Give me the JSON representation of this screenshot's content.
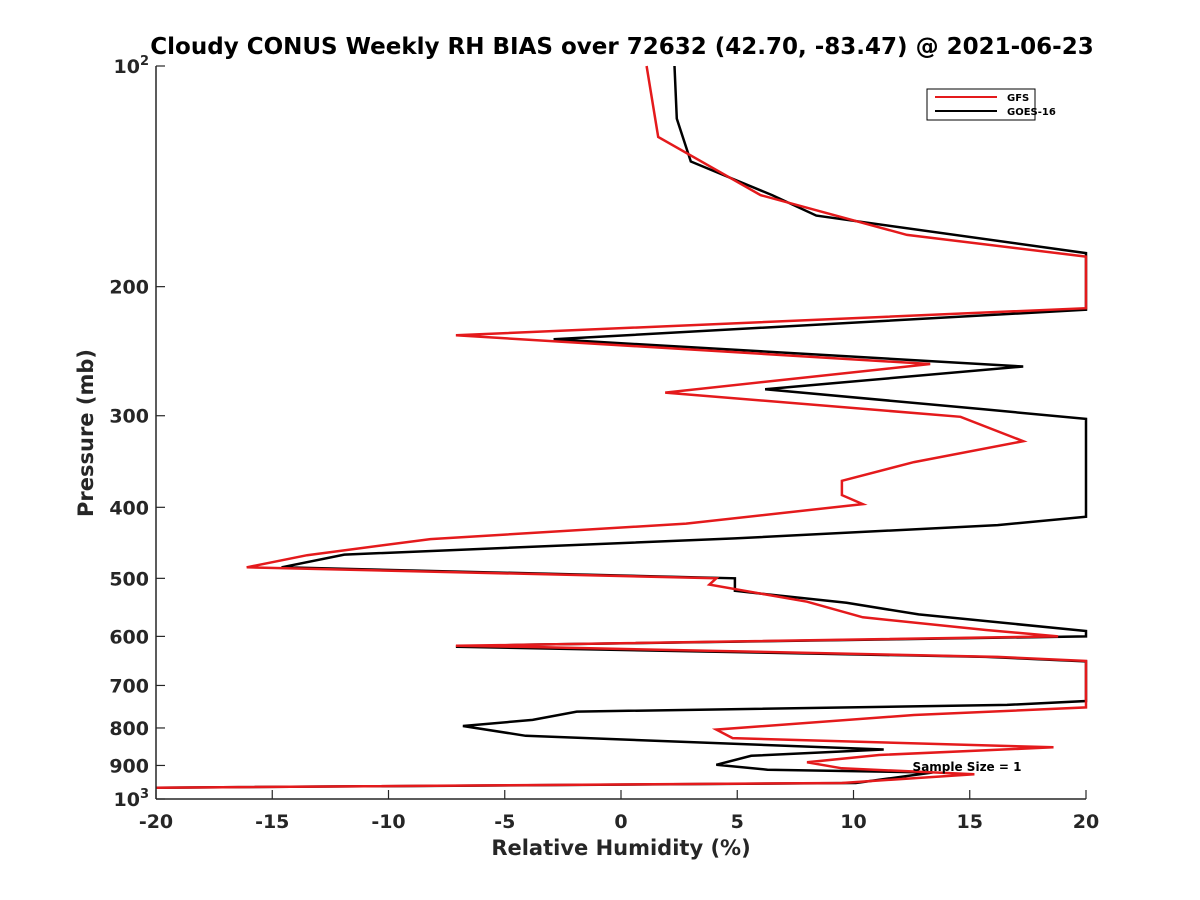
{
  "chart_data": {
    "type": "line",
    "title": "Cloudy CONUS Weekly RH BIAS over 72632 (42.70, -83.47) @ 2021-06-23",
    "xlabel": "Relative Humidity (%)",
    "ylabel": "Pressure (mb)",
    "xlim": [
      -20,
      20
    ],
    "ylim": [
      1000,
      100
    ],
    "yscale": "log",
    "y_reversed": true,
    "grid": false,
    "legend_position": "top-right",
    "x_ticks": [
      -20,
      -15,
      -10,
      -5,
      0,
      5,
      10,
      15,
      20
    ],
    "x_tick_labels": [
      "-20",
      "-15",
      "-10",
      "-5",
      "0",
      "5",
      "10",
      "15",
      "20"
    ],
    "y_ticks": [
      {
        "value": 100,
        "base": "10",
        "exp": "2"
      },
      {
        "value": 200,
        "label": "200"
      },
      {
        "value": 300,
        "label": "300"
      },
      {
        "value": 400,
        "label": "400"
      },
      {
        "value": 500,
        "label": "500"
      },
      {
        "value": 600,
        "label": "600"
      },
      {
        "value": 700,
        "label": "700"
      },
      {
        "value": 800,
        "label": "800"
      },
      {
        "value": 900,
        "label": "900"
      },
      {
        "value": 1000,
        "base": "10",
        "exp": "3"
      }
    ],
    "annotation": "Sample Size = 1",
    "series": [
      {
        "name": "GFS",
        "color": "#e41a1c",
        "points": [
          [
            1.1,
            100
          ],
          [
            1.6,
            125
          ],
          [
            6.0,
            150
          ],
          [
            12.3,
            170
          ],
          [
            20.0,
            182
          ],
          [
            20.0,
            214
          ],
          [
            -7.1,
            233
          ],
          [
            13.3,
            255
          ],
          [
            1.9,
            279
          ],
          [
            14.6,
            301
          ],
          [
            17.3,
            325
          ],
          [
            12.6,
            347
          ],
          [
            9.5,
            368
          ],
          [
            9.5,
            385
          ],
          [
            10.4,
            396
          ],
          [
            2.8,
            421
          ],
          [
            -8.2,
            442
          ],
          [
            -13.5,
            465
          ],
          [
            -16.1,
            483
          ],
          [
            4.1,
            500
          ],
          [
            3.8,
            510
          ],
          [
            8.0,
            538
          ],
          [
            10.4,
            565
          ],
          [
            15.7,
            588
          ],
          [
            18.8,
            600
          ],
          [
            -7.1,
            618
          ],
          [
            -4.3,
            620
          ],
          [
            16.2,
            640
          ],
          [
            20.0,
            648
          ],
          [
            20.0,
            750
          ],
          [
            12.6,
            768
          ],
          [
            4.1,
            804
          ],
          [
            4.8,
            826
          ],
          [
            18.6,
            850
          ],
          [
            11.1,
            871
          ],
          [
            8.0,
            891
          ],
          [
            9.5,
            908
          ],
          [
            15.2,
            925
          ],
          [
            9.5,
            951
          ],
          [
            -20.0,
            965
          ]
        ]
      },
      {
        "name": "GOES-16",
        "color": "#000000",
        "points": [
          [
            2.3,
            100
          ],
          [
            2.4,
            118
          ],
          [
            3.0,
            135
          ],
          [
            6.5,
            150
          ],
          [
            8.4,
            160
          ],
          [
            20.0,
            180
          ],
          [
            20.0,
            215
          ],
          [
            -2.9,
            236
          ],
          [
            17.3,
            257
          ],
          [
            6.2,
            276
          ],
          [
            15.6,
            294
          ],
          [
            20.0,
            303
          ],
          [
            20.0,
            412
          ],
          [
            16.2,
            423
          ],
          [
            4.9,
            441
          ],
          [
            -11.9,
            464
          ],
          [
            -14.6,
            483
          ],
          [
            4.9,
            500
          ],
          [
            4.9,
            520
          ],
          [
            9.7,
            540
          ],
          [
            12.8,
            560
          ],
          [
            20.0,
            590
          ],
          [
            20.0,
            600
          ],
          [
            -4.3,
            616
          ],
          [
            -7.1,
            620
          ],
          [
            15.7,
            640
          ],
          [
            20.0,
            649
          ],
          [
            20.0,
            735
          ],
          [
            16.6,
            744
          ],
          [
            -1.9,
            760
          ],
          [
            -3.8,
            780
          ],
          [
            -6.8,
            795
          ],
          [
            -4.1,
            820
          ],
          [
            11.3,
            856
          ],
          [
            5.6,
            873
          ],
          [
            4.1,
            898
          ],
          [
            6.3,
            912
          ],
          [
            13.4,
            920
          ],
          [
            10.1,
            951
          ],
          [
            -20.0,
            965
          ]
        ]
      }
    ]
  }
}
